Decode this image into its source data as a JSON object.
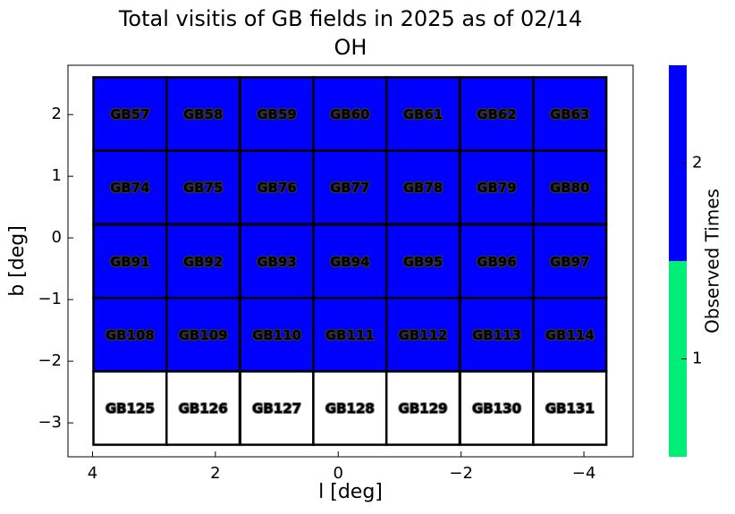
{
  "chart_data": {
    "type": "field-map",
    "title": "Total visitis of GB fields in 2025 as of 02/14",
    "subtitle": "OH",
    "x_label": "l [deg]",
    "y_label": "b [deg]",
    "xlim": [
      4.4,
      -4.8
    ],
    "ylim": [
      -3.55,
      2.8
    ],
    "xticks": [
      4,
      2,
      0,
      {
        "value": -2,
        "label": "−2"
      },
      {
        "value": -4,
        "label": "−4"
      }
    ],
    "yticks": [
      {
        "value": -3,
        "label": "−3"
      },
      {
        "value": -2,
        "label": "−2"
      },
      {
        "value": -1,
        "label": "−1"
      },
      0,
      1,
      2
    ],
    "cell_width": 1.19,
    "cell_height": 1.19,
    "empty_color": "#ffffff",
    "colorbar": {
      "label": "Observed Times",
      "lim": [
        0.5,
        2.5
      ],
      "ticks": [
        1,
        2
      ],
      "colors": [
        "#00ee77",
        "#0000ff"
      ]
    },
    "fields": [
      {
        "name": "GB57",
        "l": 3.39,
        "b": 2.01,
        "value": 2
      },
      {
        "name": "GB58",
        "l": 2.2,
        "b": 2.01,
        "value": 2
      },
      {
        "name": "GB59",
        "l": 1.0,
        "b": 2.01,
        "value": 2
      },
      {
        "name": "GB60",
        "l": -0.19,
        "b": 2.01,
        "value": 2
      },
      {
        "name": "GB61",
        "l": -1.38,
        "b": 2.01,
        "value": 2
      },
      {
        "name": "GB62",
        "l": -2.58,
        "b": 2.01,
        "value": 2
      },
      {
        "name": "GB63",
        "l": -3.77,
        "b": 2.01,
        "value": 2
      },
      {
        "name": "GB74",
        "l": 3.39,
        "b": 0.82,
        "value": 2
      },
      {
        "name": "GB75",
        "l": 2.2,
        "b": 0.82,
        "value": 2
      },
      {
        "name": "GB76",
        "l": 1.0,
        "b": 0.82,
        "value": 2
      },
      {
        "name": "GB77",
        "l": -0.19,
        "b": 0.82,
        "value": 2
      },
      {
        "name": "GB78",
        "l": -1.38,
        "b": 0.82,
        "value": 2
      },
      {
        "name": "GB79",
        "l": -2.58,
        "b": 0.82,
        "value": 2
      },
      {
        "name": "GB80",
        "l": -3.77,
        "b": 0.82,
        "value": 2
      },
      {
        "name": "GB91",
        "l": 3.39,
        "b": -0.38,
        "value": 2
      },
      {
        "name": "GB92",
        "l": 2.2,
        "b": -0.38,
        "value": 2
      },
      {
        "name": "GB93",
        "l": 1.0,
        "b": -0.38,
        "value": 2
      },
      {
        "name": "GB94",
        "l": -0.19,
        "b": -0.38,
        "value": 2
      },
      {
        "name": "GB95",
        "l": -1.38,
        "b": -0.38,
        "value": 2
      },
      {
        "name": "GB96",
        "l": -2.58,
        "b": -0.38,
        "value": 2
      },
      {
        "name": "GB97",
        "l": -3.77,
        "b": -0.38,
        "value": 2
      },
      {
        "name": "GB108",
        "l": 3.39,
        "b": -1.57,
        "value": 2
      },
      {
        "name": "GB109",
        "l": 2.2,
        "b": -1.57,
        "value": 2
      },
      {
        "name": "GB110",
        "l": 1.0,
        "b": -1.57,
        "value": 2
      },
      {
        "name": "GB111",
        "l": -0.19,
        "b": -1.57,
        "value": 2
      },
      {
        "name": "GB112",
        "l": -1.38,
        "b": -1.57,
        "value": 2
      },
      {
        "name": "GB113",
        "l": -2.58,
        "b": -1.57,
        "value": 2
      },
      {
        "name": "GB114",
        "l": -3.77,
        "b": -1.57,
        "value": 2
      },
      {
        "name": "GB125",
        "l": 3.39,
        "b": -2.76,
        "value": 0
      },
      {
        "name": "GB126",
        "l": 2.2,
        "b": -2.76,
        "value": 0
      },
      {
        "name": "GB127",
        "l": 1.0,
        "b": -2.76,
        "value": 0
      },
      {
        "name": "GB128",
        "l": -0.19,
        "b": -2.76,
        "value": 0
      },
      {
        "name": "GB129",
        "l": -1.38,
        "b": -2.76,
        "value": 0
      },
      {
        "name": "GB130",
        "l": -2.58,
        "b": -2.76,
        "value": 0
      },
      {
        "name": "GB131",
        "l": -3.77,
        "b": -2.76,
        "value": 0
      }
    ]
  }
}
